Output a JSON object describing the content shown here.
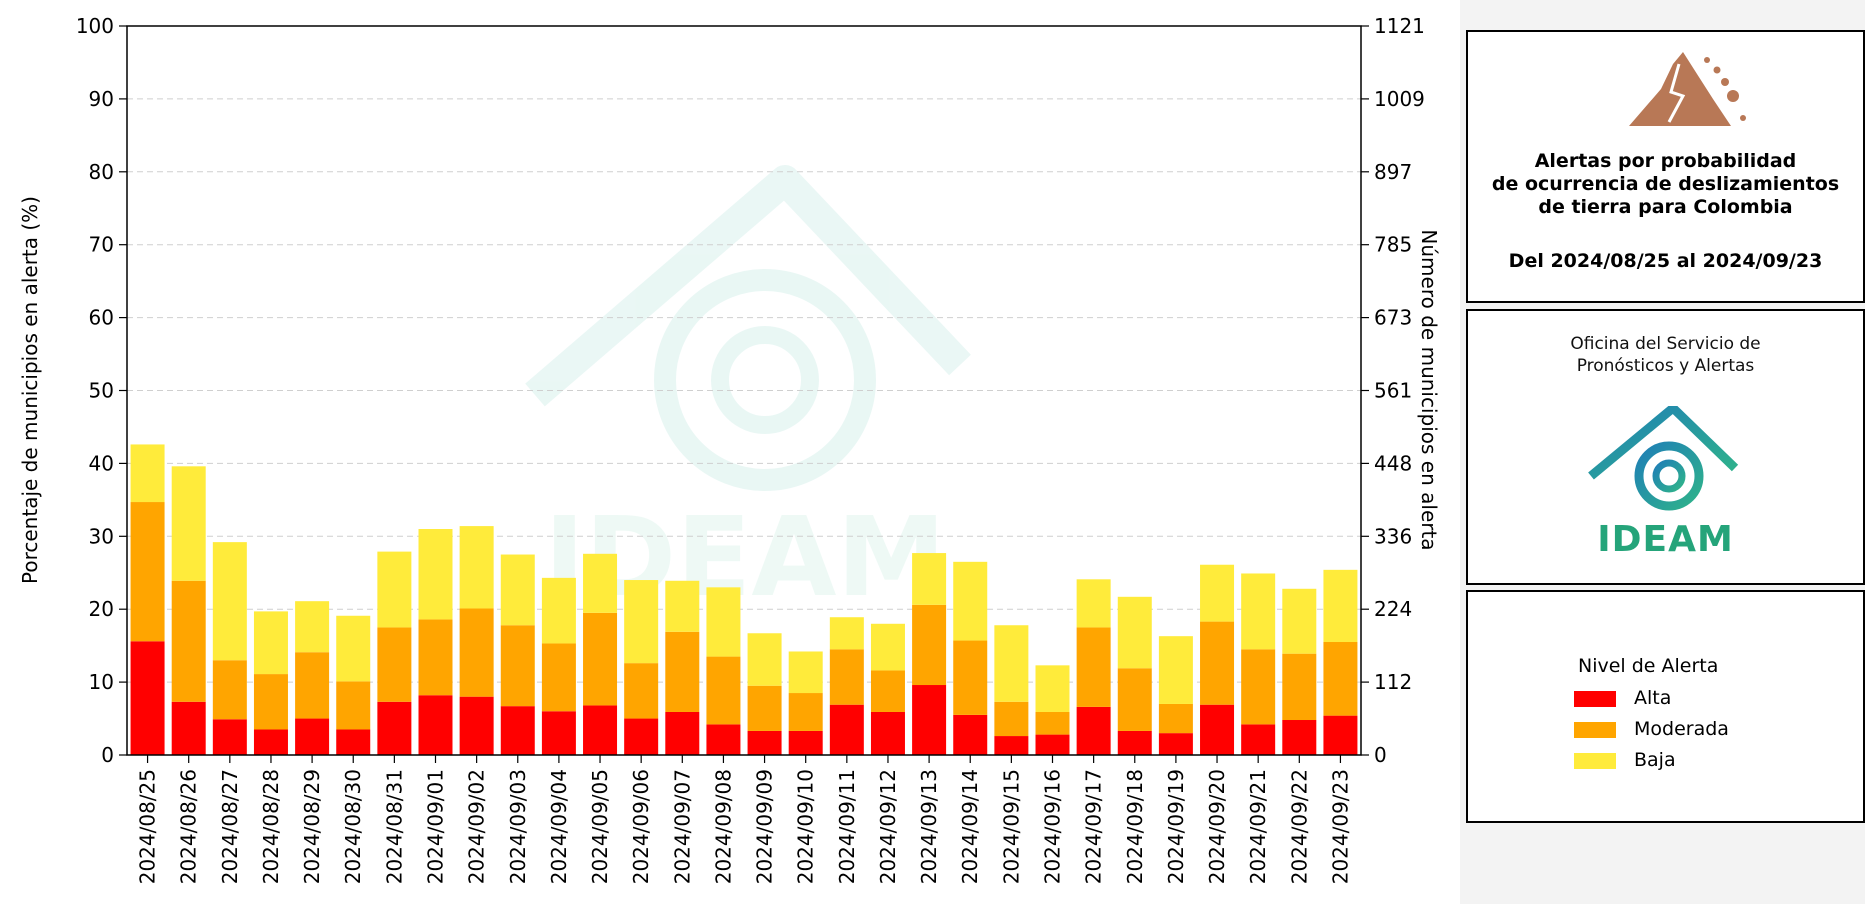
{
  "chart_data": {
    "type": "bar",
    "stacked": true,
    "categories": [
      "2024/08/25",
      "2024/08/26",
      "2024/08/27",
      "2024/08/28",
      "2024/08/29",
      "2024/08/30",
      "2024/08/31",
      "2024/09/01",
      "2024/09/02",
      "2024/09/03",
      "2024/09/04",
      "2024/09/05",
      "2024/09/06",
      "2024/09/07",
      "2024/09/08",
      "2024/09/09",
      "2024/09/10",
      "2024/09/11",
      "2024/09/12",
      "2024/09/13",
      "2024/09/14",
      "2024/09/15",
      "2024/09/16",
      "2024/09/17",
      "2024/09/18",
      "2024/09/19",
      "2024/09/20",
      "2024/09/21",
      "2024/09/22",
      "2024/09/23"
    ],
    "series": [
      {
        "name": "Alta",
        "color": "#ff0000",
        "values": [
          15.6,
          7.3,
          4.9,
          3.5,
          5.0,
          3.5,
          7.3,
          8.2,
          8.0,
          6.7,
          6.0,
          6.8,
          5.0,
          5.9,
          4.2,
          3.3,
          3.3,
          6.9,
          5.9,
          9.6,
          5.5,
          2.6,
          2.8,
          6.6,
          3.3,
          3.0,
          6.9,
          4.2,
          4.8,
          5.4
        ]
      },
      {
        "name": "Moderada",
        "color": "#ffa500",
        "values": [
          19.1,
          16.6,
          8.1,
          7.6,
          9.1,
          6.6,
          10.2,
          10.4,
          12.1,
          11.1,
          9.3,
          12.7,
          7.6,
          11.0,
          9.3,
          6.2,
          5.2,
          7.6,
          5.7,
          11.0,
          10.2,
          4.7,
          3.1,
          10.9,
          8.6,
          4.0,
          11.4,
          10.3,
          9.1,
          10.1
        ]
      },
      {
        "name": "Baja",
        "color": "#ffeb3b",
        "values": [
          7.9,
          15.7,
          16.2,
          8.6,
          7.0,
          9.0,
          10.4,
          12.4,
          11.3,
          9.7,
          9.0,
          8.1,
          11.4,
          7.0,
          9.5,
          7.2,
          5.7,
          4.4,
          6.4,
          7.1,
          10.8,
          10.5,
          6.4,
          6.6,
          9.8,
          9.3,
          7.8,
          10.4,
          8.9,
          9.9
        ]
      }
    ],
    "ylabel": "Porcentaje de municipios en alerta (%)",
    "ylim": [
      0,
      100
    ],
    "yticks": [
      0,
      10,
      20,
      30,
      40,
      50,
      60,
      70,
      80,
      90,
      100
    ],
    "y2label": "Número de municipios en alerta",
    "y2lim": [
      0,
      1121
    ],
    "y2ticks": [
      "0",
      "112",
      "224",
      "336",
      "448",
      "561",
      "673",
      "785",
      "897",
      "1009",
      "1121"
    ],
    "grid": "horizontal-dashed",
    "watermark": "IDEAM"
  },
  "title_panel": {
    "line1": "Alertas por probabilidad",
    "line2": "de ocurrencia de deslizamientos",
    "line3": "de tierra para Colombia",
    "date_range": "Del 2024/08/25 al 2024/09/23",
    "icon": "landslide-icon"
  },
  "org_panel": {
    "line1": "Oficina del Servicio de",
    "line2": "Pronósticos y Alertas",
    "logo_text": "IDEAM",
    "icon": "ideam-logo-icon"
  },
  "legend": {
    "title": "Nivel de Alerta",
    "items": [
      {
        "label": "Alta",
        "color": "#ff0000"
      },
      {
        "label": "Moderada",
        "color": "#ffa500"
      },
      {
        "label": "Baja",
        "color": "#ffeb3b"
      }
    ]
  }
}
